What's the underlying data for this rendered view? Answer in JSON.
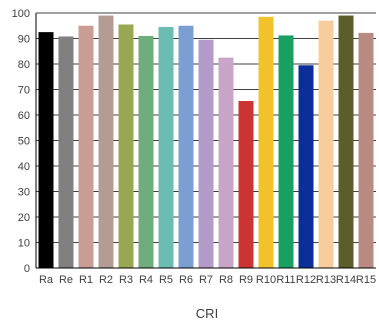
{
  "chart_data": {
    "type": "bar",
    "title": "",
    "xlabel": "CRI",
    "ylabel": "",
    "ylim": [
      0,
      100
    ],
    "yticks": [
      0,
      10,
      20,
      30,
      40,
      50,
      60,
      70,
      80,
      90,
      100
    ],
    "grid": true,
    "legend": "none",
    "categories": [
      "Ra",
      "Re",
      "R1",
      "R2",
      "R3",
      "R4",
      "R5",
      "R6",
      "R7",
      "R8",
      "R9",
      "R10",
      "R11",
      "R12",
      "R13",
      "R14",
      "R15"
    ],
    "values": [
      92.5,
      90.8,
      95,
      99,
      95.5,
      91,
      94.5,
      95,
      89.5,
      82.5,
      65.5,
      98.5,
      91.2,
      79.5,
      97,
      99,
      92.2
    ],
    "colors": [
      "#000000",
      "#808080",
      "#c99c94",
      "#b49b94",
      "#98a850",
      "#6fae7c",
      "#6bbdb2",
      "#7a9fd0",
      "#b49ac8",
      "#c8a4c6",
      "#cc3333",
      "#f2c22c",
      "#18a061",
      "#0b2e98",
      "#f8cd9e",
      "#5b5d2a",
      "#b98a80"
    ]
  }
}
